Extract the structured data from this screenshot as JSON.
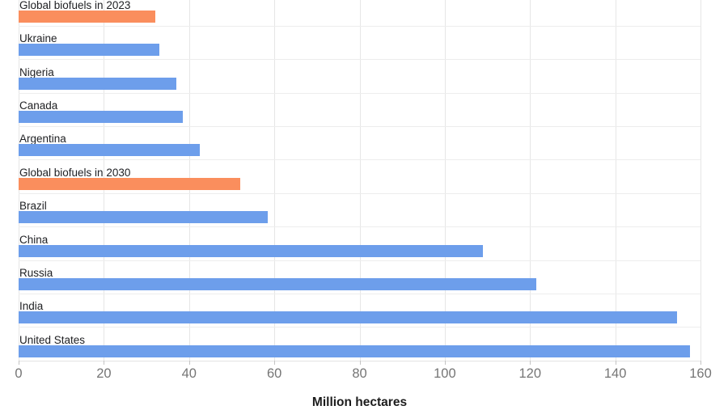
{
  "chart_data": {
    "type": "bar",
    "orientation": "horizontal",
    "title": "",
    "xlabel": "Million hectares",
    "ylabel": "",
    "xlim": [
      0,
      160
    ],
    "xticks": [
      0,
      20,
      40,
      60,
      80,
      100,
      120,
      140,
      160
    ],
    "grid": true,
    "legend": "none",
    "items": [
      {
        "label": "Global biofuels in 2023",
        "value": 32,
        "highlight": true
      },
      {
        "label": "Ukraine",
        "value": 33,
        "highlight": false
      },
      {
        "label": "Nigeria",
        "value": 37,
        "highlight": false
      },
      {
        "label": "Canada",
        "value": 38.5,
        "highlight": false
      },
      {
        "label": "Argentina",
        "value": 42.5,
        "highlight": false
      },
      {
        "label": "Global biofuels in 2030",
        "value": 52,
        "highlight": true
      },
      {
        "label": "Brazil",
        "value": 58.5,
        "highlight": false
      },
      {
        "label": "China",
        "value": 109,
        "highlight": false
      },
      {
        "label": "Russia",
        "value": 121.5,
        "highlight": false
      },
      {
        "label": "India",
        "value": 154.5,
        "highlight": false
      },
      {
        "label": "United States",
        "value": 157.5,
        "highlight": false
      }
    ],
    "colors": {
      "bar_default": "#6d9eeb",
      "bar_highlight": "#fa8e5d",
      "gridline": "#e6e6e6",
      "row_separator": "#ededed",
      "tick_mark": "#c4c4c4",
      "tick_label": "#757575",
      "category_label": "#202124",
      "axis_title": "#1c1c1c",
      "background": "#ffffff"
    }
  }
}
